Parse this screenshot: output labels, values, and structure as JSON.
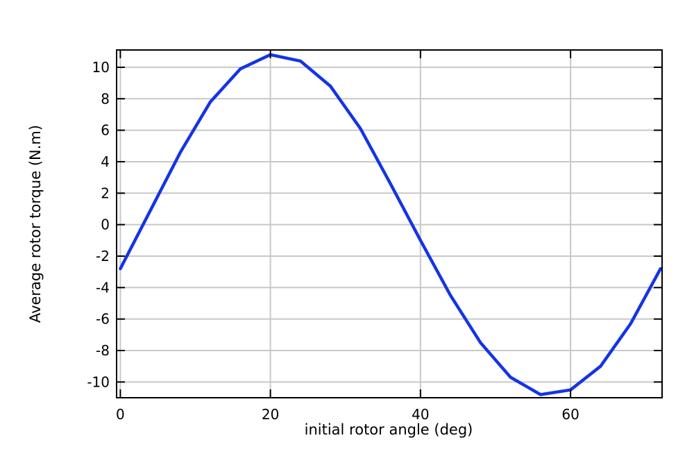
{
  "chart_data": {
    "type": "line",
    "title": "",
    "xlabel": "initial rotor angle (deg)",
    "ylabel": "Average rotor torque (N.m)",
    "xlim": [
      -0.5,
      72.2
    ],
    "ylim": [
      -11.0,
      11.1
    ],
    "xticks": [
      0,
      20,
      40,
      60
    ],
    "yticks": [
      -10,
      -8,
      -6,
      -4,
      -2,
      0,
      2,
      4,
      6,
      8,
      10
    ],
    "xtick_labels": [
      "0",
      "20",
      "40",
      "60"
    ],
    "ytick_labels": [
      "-10",
      "-8",
      "-6",
      "-4",
      "-2",
      "0",
      "2",
      "4",
      "6",
      "8",
      "10"
    ],
    "grid": true,
    "series": [
      {
        "color": "#1434e6",
        "x": [
          0,
          4,
          8,
          12,
          16,
          20,
          24,
          28,
          32,
          36,
          40,
          44,
          48,
          52,
          56,
          60,
          64,
          68,
          72
        ],
        "y": [
          -2.8,
          0.9,
          4.6,
          7.8,
          9.9,
          10.8,
          10.4,
          8.8,
          6.1,
          2.6,
          -1.0,
          -4.5,
          -7.5,
          -9.7,
          -10.8,
          -10.5,
          -9.0,
          -6.3,
          -2.8
        ]
      }
    ]
  }
}
